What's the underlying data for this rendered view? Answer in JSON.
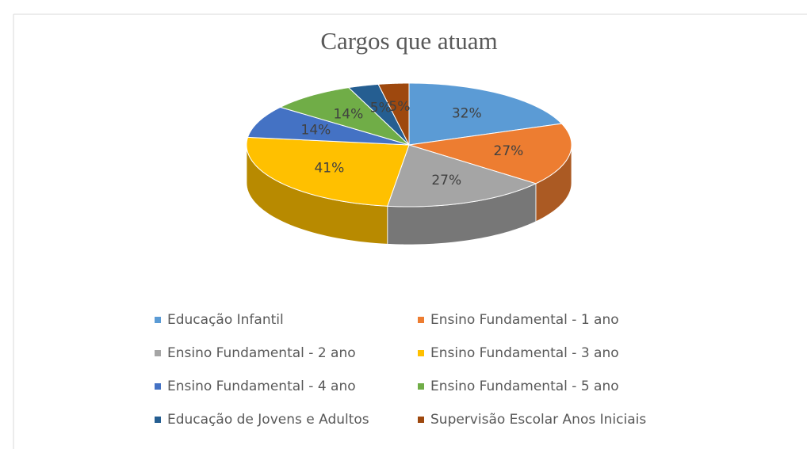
{
  "chart_data": {
    "type": "pie",
    "title": "Cargos que atuam",
    "categories": [
      "Educação Infantil",
      "Ensino Fundamental - 1 ano",
      "Ensino Fundamental - 2 ano",
      "Ensino Fundamental - 3 ano",
      "Ensino Fundamental - 4 ano",
      "Ensino Fundamental - 5 ano",
      "Educação de Jovens e Adultos",
      "Supervisão Escolar Anos Iniciais"
    ],
    "values": [
      32,
      27,
      27,
      41,
      14,
      14,
      5,
      5
    ],
    "value_labels": [
      "32%",
      "27%",
      "27%",
      "41%",
      "14%",
      "14%",
      "5%",
      "5%"
    ],
    "colors": [
      "#5b9bd5",
      "#ed7d31",
      "#a5a5a5",
      "#ffc000",
      "#4472c4",
      "#70ad47",
      "#255e91",
      "#9e480e"
    ],
    "legend": "bottom"
  }
}
